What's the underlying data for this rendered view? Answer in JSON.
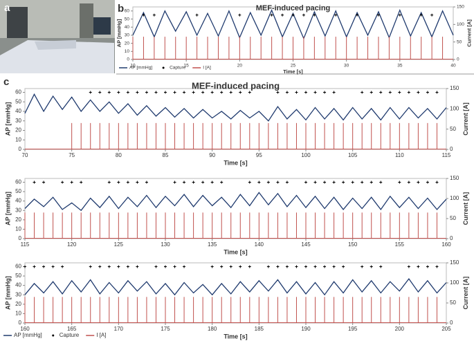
{
  "panels": [
    "a",
    "b",
    "c"
  ],
  "chart_data": [
    {
      "type": "line",
      "title": "MEF-induced pacing",
      "xlabel": "Time [s]",
      "ylabel": "AP [mmHg]",
      "y2label": "Current [A]",
      "legend": "bottom-left",
      "xlim": [
        10,
        40
      ],
      "xticks": [
        10,
        15,
        20,
        25,
        30,
        35,
        40
      ],
      "ylim": [
        0,
        65
      ],
      "yticks": [
        0,
        10,
        20,
        30,
        40,
        50,
        60
      ],
      "y2lim": [
        0,
        150
      ],
      "y2ticks": [
        0,
        50,
        100,
        150
      ],
      "series": [
        {
          "name": "AP [mmHg]",
          "color": "#1f3a6e",
          "x": [
            10,
            11,
            12,
            13,
            14,
            15,
            16,
            17,
            18,
            19,
            20,
            21,
            22,
            23,
            24,
            25,
            26,
            27,
            28,
            29,
            30,
            31,
            32,
            33,
            34,
            35,
            36,
            37,
            38,
            39,
            40
          ],
          "values": [
            30,
            58,
            28,
            60,
            35,
            59,
            30,
            57,
            29,
            60,
            27,
            58,
            30,
            61,
            28,
            57,
            26,
            59,
            29,
            60,
            28,
            58,
            30,
            59,
            27,
            61,
            29,
            58,
            28,
            60,
            30
          ]
        },
        {
          "name": "Capture",
          "color": "#000000",
          "x": [
            11,
            12,
            16,
            20,
            23,
            24,
            25,
            26,
            27,
            29,
            31,
            33,
            35,
            37,
            38
          ],
          "values": [
            55,
            55,
            55,
            55,
            55,
            55,
            55,
            55,
            55,
            55,
            55,
            55,
            55,
            55,
            55
          ]
        },
        {
          "name": "I [A]",
          "color": "#c0504d",
          "axis": "y2",
          "x": [
            10,
            11,
            12,
            13,
            14,
            15,
            16,
            17,
            18,
            19,
            20,
            21,
            22,
            23,
            24,
            25,
            26,
            27,
            28,
            29,
            30,
            31,
            32,
            33,
            34,
            35,
            36,
            37,
            38,
            39
          ],
          "values": [
            65,
            65,
            65,
            65,
            65,
            65,
            65,
            65,
            65,
            65,
            65,
            65,
            65,
            65,
            65,
            65,
            65,
            65,
            65,
            65,
            65,
            65,
            65,
            65,
            65,
            65,
            65,
            65,
            65,
            65
          ]
        }
      ]
    },
    {
      "type": "line",
      "title": "MEF-induced pacing",
      "xlabel": "Time [s]",
      "ylabel": "AP [mmHg]",
      "y2label": "Current [A]",
      "xlim": [
        70,
        115
      ],
      "xticks": [
        70,
        75,
        80,
        85,
        90,
        95,
        100,
        105,
        110,
        115
      ],
      "ylim": [
        0,
        64
      ],
      "yticks": [
        0,
        10,
        20,
        30,
        40,
        50,
        60
      ],
      "y2lim": [
        0,
        150
      ],
      "y2ticks": [
        0,
        50,
        100,
        150
      ],
      "series": [
        {
          "name": "AP [mmHg]",
          "color": "#1f3a6e",
          "x": [
            70,
            71,
            72,
            73,
            74,
            75,
            76,
            77,
            78,
            79,
            80,
            81,
            82,
            83,
            84,
            85,
            86,
            87,
            88,
            89,
            90,
            91,
            92,
            93,
            94,
            95,
            96,
            97,
            98,
            99,
            100,
            101,
            102,
            103,
            104,
            105,
            106,
            107,
            108,
            109,
            110,
            111,
            112,
            113,
            114,
            115
          ],
          "values": [
            38,
            58,
            40,
            56,
            42,
            55,
            40,
            52,
            40,
            50,
            38,
            48,
            36,
            46,
            35,
            44,
            34,
            43,
            33,
            42,
            33,
            40,
            32,
            41,
            33,
            40,
            30,
            45,
            32,
            42,
            31,
            44,
            32,
            43,
            31,
            44,
            32,
            43,
            31,
            44,
            32,
            44,
            33,
            43,
            32,
            44
          ]
        },
        {
          "name": "Capture",
          "color": "#000000",
          "x": [
            77,
            78,
            79,
            80,
            81,
            82,
            83,
            84,
            85,
            86,
            87,
            88,
            89,
            90,
            91,
            92,
            93,
            94,
            97,
            98,
            99,
            100,
            101,
            102,
            103,
            106,
            107,
            108,
            109,
            110,
            111,
            112,
            113,
            114
          ],
          "values": [
            60,
            60,
            60,
            60,
            60,
            60,
            60,
            60,
            60,
            60,
            60,
            60,
            60,
            60,
            60,
            60,
            60,
            60,
            60,
            60,
            60,
            60,
            60,
            60,
            60,
            60,
            60,
            60,
            60,
            60,
            60,
            60,
            60,
            60
          ]
        },
        {
          "name": "I [A]",
          "color": "#c0504d",
          "axis": "y2",
          "x": [
            75,
            76,
            77,
            78,
            79,
            80,
            81,
            82,
            83,
            84,
            85,
            86,
            87,
            88,
            89,
            90,
            91,
            92,
            93,
            94,
            95,
            96,
            97,
            98,
            99,
            100,
            101,
            102,
            103,
            104,
            105,
            106,
            107,
            108,
            109,
            110,
            111,
            112,
            113,
            114
          ],
          "values": [
            65,
            65,
            65,
            65,
            65,
            65,
            65,
            65,
            65,
            65,
            65,
            65,
            65,
            65,
            65,
            65,
            65,
            65,
            65,
            65,
            65,
            65,
            65,
            65,
            65,
            65,
            65,
            65,
            65,
            65,
            65,
            65,
            65,
            65,
            65,
            65,
            65,
            65,
            65,
            65
          ]
        }
      ]
    },
    {
      "type": "line",
      "xlabel": "Time [s]",
      "ylabel": "AP [mmHg]",
      "y2label": "Current [A]",
      "xlim": [
        115,
        160
      ],
      "xticks": [
        115,
        120,
        125,
        130,
        135,
        140,
        145,
        150,
        155,
        160
      ],
      "ylim": [
        0,
        64
      ],
      "yticks": [
        0,
        10,
        20,
        30,
        40,
        50,
        60
      ],
      "y2lim": [
        0,
        150
      ],
      "y2ticks": [
        0,
        50,
        100,
        150
      ],
      "series": [
        {
          "name": "AP [mmHg]",
          "color": "#1f3a6e",
          "x": [
            115,
            116,
            117,
            118,
            119,
            120,
            121,
            122,
            123,
            124,
            125,
            126,
            127,
            128,
            129,
            130,
            131,
            132,
            133,
            134,
            135,
            136,
            137,
            138,
            139,
            140,
            141,
            142,
            143,
            144,
            145,
            146,
            147,
            148,
            149,
            150,
            151,
            152,
            153,
            154,
            155,
            156,
            157,
            158,
            159,
            160
          ],
          "values": [
            32,
            42,
            34,
            44,
            31,
            38,
            30,
            43,
            33,
            45,
            32,
            44,
            34,
            46,
            33,
            45,
            35,
            47,
            34,
            46,
            35,
            44,
            33,
            47,
            35,
            49,
            36,
            48,
            34,
            46,
            33,
            45,
            32,
            44,
            31,
            43,
            32,
            44,
            31,
            45,
            33,
            44,
            32,
            43,
            31,
            42
          ]
        },
        {
          "name": "Capture",
          "color": "#000000",
          "x": [
            116,
            117,
            119,
            120,
            121,
            124,
            125,
            126,
            127,
            128,
            131,
            132,
            133,
            134,
            135,
            136,
            139,
            140,
            141,
            142,
            143,
            145,
            146,
            147,
            148,
            149,
            150,
            151,
            152,
            153,
            155,
            156,
            157,
            158,
            159
          ],
          "values": [
            60,
            60,
            60,
            60,
            60,
            60,
            60,
            60,
            60,
            60,
            60,
            60,
            60,
            60,
            60,
            60,
            60,
            60,
            60,
            60,
            60,
            60,
            60,
            60,
            60,
            60,
            60,
            60,
            60,
            60,
            60,
            60,
            60,
            60,
            60
          ]
        },
        {
          "name": "I [A]",
          "color": "#c0504d",
          "axis": "y2",
          "x": [
            115,
            116,
            117,
            118,
            119,
            120,
            121,
            122,
            123,
            124,
            125,
            126,
            127,
            128,
            129,
            130,
            131,
            132,
            133,
            134,
            135,
            136,
            137,
            138,
            139,
            140,
            141,
            142,
            143,
            144,
            145,
            146,
            147,
            148,
            149,
            150,
            151,
            152,
            153,
            154,
            155,
            156,
            157,
            158,
            159
          ],
          "values": [
            65,
            65,
            65,
            65,
            65,
            65,
            65,
            65,
            65,
            65,
            65,
            65,
            65,
            65,
            65,
            65,
            65,
            65,
            65,
            65,
            65,
            65,
            65,
            65,
            65,
            65,
            65,
            65,
            65,
            65,
            65,
            65,
            65,
            65,
            65,
            65,
            65,
            65,
            65,
            65,
            65,
            65,
            65,
            65,
            65
          ]
        }
      ]
    },
    {
      "type": "line",
      "xlabel": "Time [s]",
      "ylabel": "AP [mmHg]",
      "y2label": "Current [A]",
      "legend": "bottom-left",
      "xlim": [
        160,
        205
      ],
      "xticks": [
        160,
        165,
        170,
        175,
        180,
        185,
        190,
        195,
        200,
        205
      ],
      "ylim": [
        0,
        64
      ],
      "yticks": [
        0,
        10,
        20,
        30,
        40,
        50,
        60
      ],
      "y2lim": [
        0,
        150
      ],
      "y2ticks": [
        0,
        50,
        100,
        150
      ],
      "series": [
        {
          "name": "AP [mmHg]",
          "color": "#1f3a6e",
          "x": [
            160,
            161,
            162,
            163,
            164,
            165,
            166,
            167,
            168,
            169,
            170,
            171,
            172,
            173,
            174,
            175,
            176,
            177,
            178,
            179,
            180,
            181,
            182,
            183,
            184,
            185,
            186,
            187,
            188,
            189,
            190,
            191,
            192,
            193,
            194,
            195,
            196,
            197,
            198,
            199,
            200,
            201,
            202,
            203,
            204,
            205
          ],
          "values": [
            30,
            42,
            32,
            44,
            31,
            45,
            33,
            46,
            31,
            43,
            32,
            45,
            34,
            44,
            31,
            42,
            30,
            43,
            32,
            41,
            30,
            42,
            31,
            44,
            33,
            45,
            34,
            46,
            32,
            44,
            31,
            43,
            30,
            44,
            32,
            46,
            33,
            45,
            32,
            44,
            34,
            47,
            33,
            45,
            32,
            43
          ]
        },
        {
          "name": "Capture",
          "color": "#000000",
          "x": [
            160,
            161,
            162,
            163,
            164,
            167,
            168,
            169,
            170,
            171,
            172,
            174,
            175,
            176,
            177,
            180,
            181,
            182,
            183,
            184,
            186,
            187,
            188,
            189,
            190,
            191,
            192,
            193,
            194,
            196,
            197,
            198,
            201,
            202,
            203,
            204
          ],
          "values": [
            60,
            60,
            60,
            60,
            60,
            60,
            60,
            60,
            60,
            60,
            60,
            60,
            60,
            60,
            60,
            60,
            60,
            60,
            60,
            60,
            60,
            60,
            60,
            60,
            60,
            60,
            60,
            60,
            60,
            60,
            60,
            60,
            60,
            60,
            60,
            60
          ]
        },
        {
          "name": "I [A]",
          "color": "#c0504d",
          "axis": "y2",
          "x": [
            160,
            161,
            162,
            163,
            164,
            165,
            166,
            167,
            168,
            169,
            170,
            171,
            172,
            173,
            174,
            175,
            176,
            177,
            178,
            179,
            180,
            181,
            182,
            183,
            184,
            185,
            186,
            187,
            188,
            189,
            190,
            191,
            192,
            193,
            194,
            195,
            196,
            197,
            198,
            199,
            200,
            201,
            202,
            203,
            204
          ],
          "values": [
            65,
            65,
            65,
            65,
            65,
            65,
            65,
            65,
            65,
            65,
            65,
            65,
            65,
            65,
            65,
            65,
            65,
            65,
            65,
            65,
            65,
            65,
            65,
            65,
            65,
            65,
            65,
            65,
            65,
            65,
            65,
            65,
            65,
            65,
            65,
            65,
            65,
            65,
            65,
            65,
            65,
            65,
            65,
            65,
            65
          ]
        }
      ]
    }
  ]
}
